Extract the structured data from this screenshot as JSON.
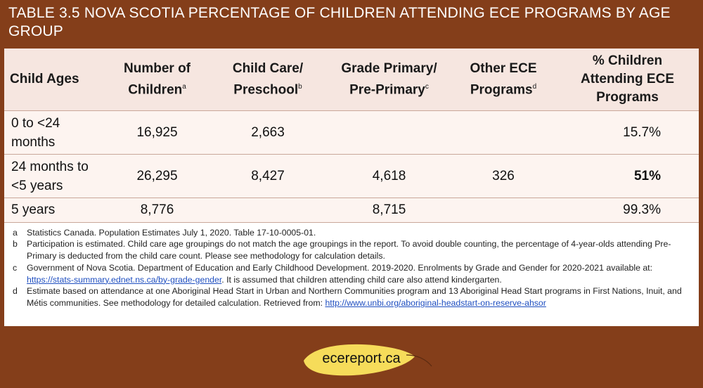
{
  "title": "TABLE 3.5 NOVA SCOTIA PERCENTAGE OF CHILDREN ATTENDING ECE PROGRAMS BY AGE GROUP",
  "columns": [
    {
      "label": "Child Ages",
      "sup": ""
    },
    {
      "label": "Number of Children",
      "sup": "a"
    },
    {
      "label": "Child Care/ Preschool",
      "sup": "b"
    },
    {
      "label": "Grade Primary/ Pre-Primary",
      "sup": "c"
    },
    {
      "label": "Other ECE Programs",
      "sup": "d"
    },
    {
      "label": "% Children Attending ECE Programs",
      "sup": ""
    }
  ],
  "rows": [
    {
      "age": "0 to <24 months",
      "children": "16,925",
      "childcare": "2,663",
      "grade_primary": "",
      "other": "",
      "pct": "15.7%"
    },
    {
      "age": "24 months to <5 years",
      "children": "26,295",
      "childcare": "8,427",
      "grade_primary": "4,618",
      "other": "326",
      "pct": "51%"
    },
    {
      "age": "5 years",
      "children": "8,776",
      "childcare": "",
      "grade_primary": "8,715",
      "other": "",
      "pct": "99.3%"
    }
  ],
  "notes": [
    {
      "letter": "a",
      "text": "Statistics Canada. Population Estimates July 1, 2020. Table 17-10-0005-01.",
      "link": "",
      "after": ""
    },
    {
      "letter": "b",
      "text": "Participation is estimated. Child care age groupings do not match the age groupings in the report. To avoid double counting, the percentage of 4-year-olds attending Pre-Primary is deducted from the child care count. Please see methodology for calculation details.",
      "link": "",
      "after": ""
    },
    {
      "letter": "c",
      "text": "Government of Nova Scotia. Department of Education and Early Childhood Development. 2019-2020. Enrolments by Grade and Gender for 2020-2021 available at: ",
      "link": "https://stats-summary.ednet.ns.ca/by-grade-gender",
      "after": ". It is assumed that children attending child care also attend kindergarten."
    },
    {
      "letter": "d",
      "text": "Estimate based on attendance at one Aboriginal Head Start in Urban and Northern Communities program and 13 Aboriginal Head Start programs in First Nations, Inuit, and Métis communities. See methodology for detailed calculation. Retrieved from: ",
      "link": "http://www.unbi.org/aboriginal-headstart-on-reserve-ahsor",
      "after": ""
    }
  ],
  "footer": {
    "logo_text": "ecereport.ca"
  },
  "colors": {
    "background": "#843e1a",
    "header_bg": "#f6e6e0",
    "leaf": "#f6dc5a"
  }
}
